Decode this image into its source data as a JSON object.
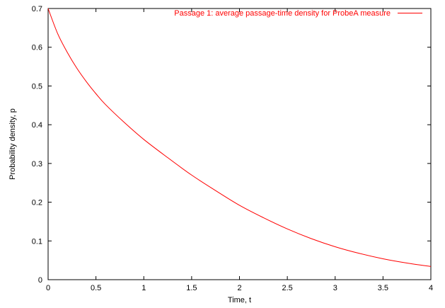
{
  "chart_data": {
    "type": "line",
    "xlabel": "Time, t",
    "ylabel": "Probability density, p",
    "xlim": [
      0,
      4
    ],
    "ylim": [
      0,
      0.7
    ],
    "x_ticks": [
      0,
      0.5,
      1,
      1.5,
      2,
      2.5,
      3,
      3.5,
      4
    ],
    "x_tick_labels": [
      "0",
      "0.5",
      "1",
      "1.5",
      "2",
      "2.5",
      "3",
      "3.5",
      "4"
    ],
    "y_ticks": [
      0,
      0.1,
      0.2,
      0.3,
      0.4,
      0.5,
      0.6,
      0.7
    ],
    "y_tick_labels": [
      "0",
      "0.1",
      "0.2",
      "0.3",
      "0.4",
      "0.5",
      "0.6",
      "0.7"
    ],
    "grid": false,
    "legend_position": "top-right",
    "series": [
      {
        "name": "Passage 1: average passage-time density for ProbeA measure",
        "color": "#ff0000",
        "x": [
          0,
          0.1,
          0.2,
          0.3,
          0.4,
          0.5,
          0.6,
          0.8,
          1.0,
          1.25,
          1.5,
          1.75,
          2.0,
          2.25,
          2.5,
          2.75,
          3.0,
          3.25,
          3.5,
          3.75,
          4.0
        ],
        "y": [
          0.7,
          0.635,
          0.587,
          0.546,
          0.511,
          0.48,
          0.452,
          0.405,
          0.362,
          0.315,
          0.27,
          0.23,
          0.192,
          0.16,
          0.131,
          0.106,
          0.085,
          0.068,
          0.054,
          0.043,
          0.034
        ]
      }
    ]
  }
}
